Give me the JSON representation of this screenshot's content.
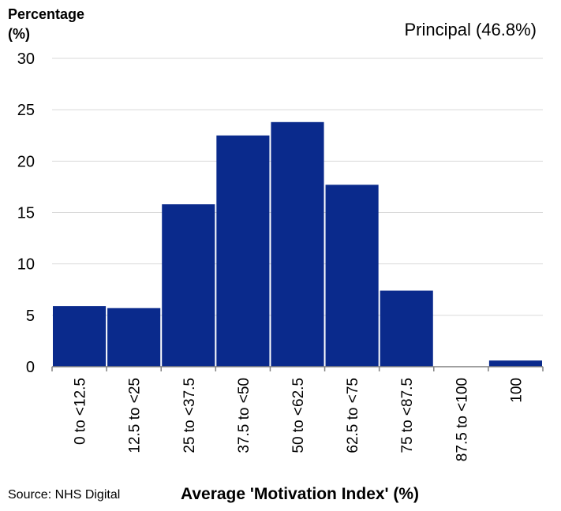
{
  "chart_data": {
    "type": "bar",
    "ylabel_lines": [
      "Percentage",
      "(%)"
    ],
    "annotation": "Principal (46.8%)",
    "xlabel": "Average 'Motivation Index' (%)",
    "source": "Source: NHS Digital",
    "ylim": [
      0,
      30
    ],
    "yticks": [
      0,
      5,
      10,
      15,
      20,
      25,
      30
    ],
    "grid": true,
    "categories": [
      "0 to <12.5",
      "12.5 to <25",
      "25 to <37.5",
      "37.5 to <50",
      "50 to <62.5",
      "62.5 to <75",
      "75 to <87.5",
      "87.5 to <100",
      "100"
    ],
    "values": [
      5.9,
      5.7,
      15.8,
      22.5,
      23.8,
      17.7,
      7.4,
      0.0,
      0.6
    ],
    "bar_color": "#0a2a8c",
    "grid_color": "#d9d9d9"
  }
}
